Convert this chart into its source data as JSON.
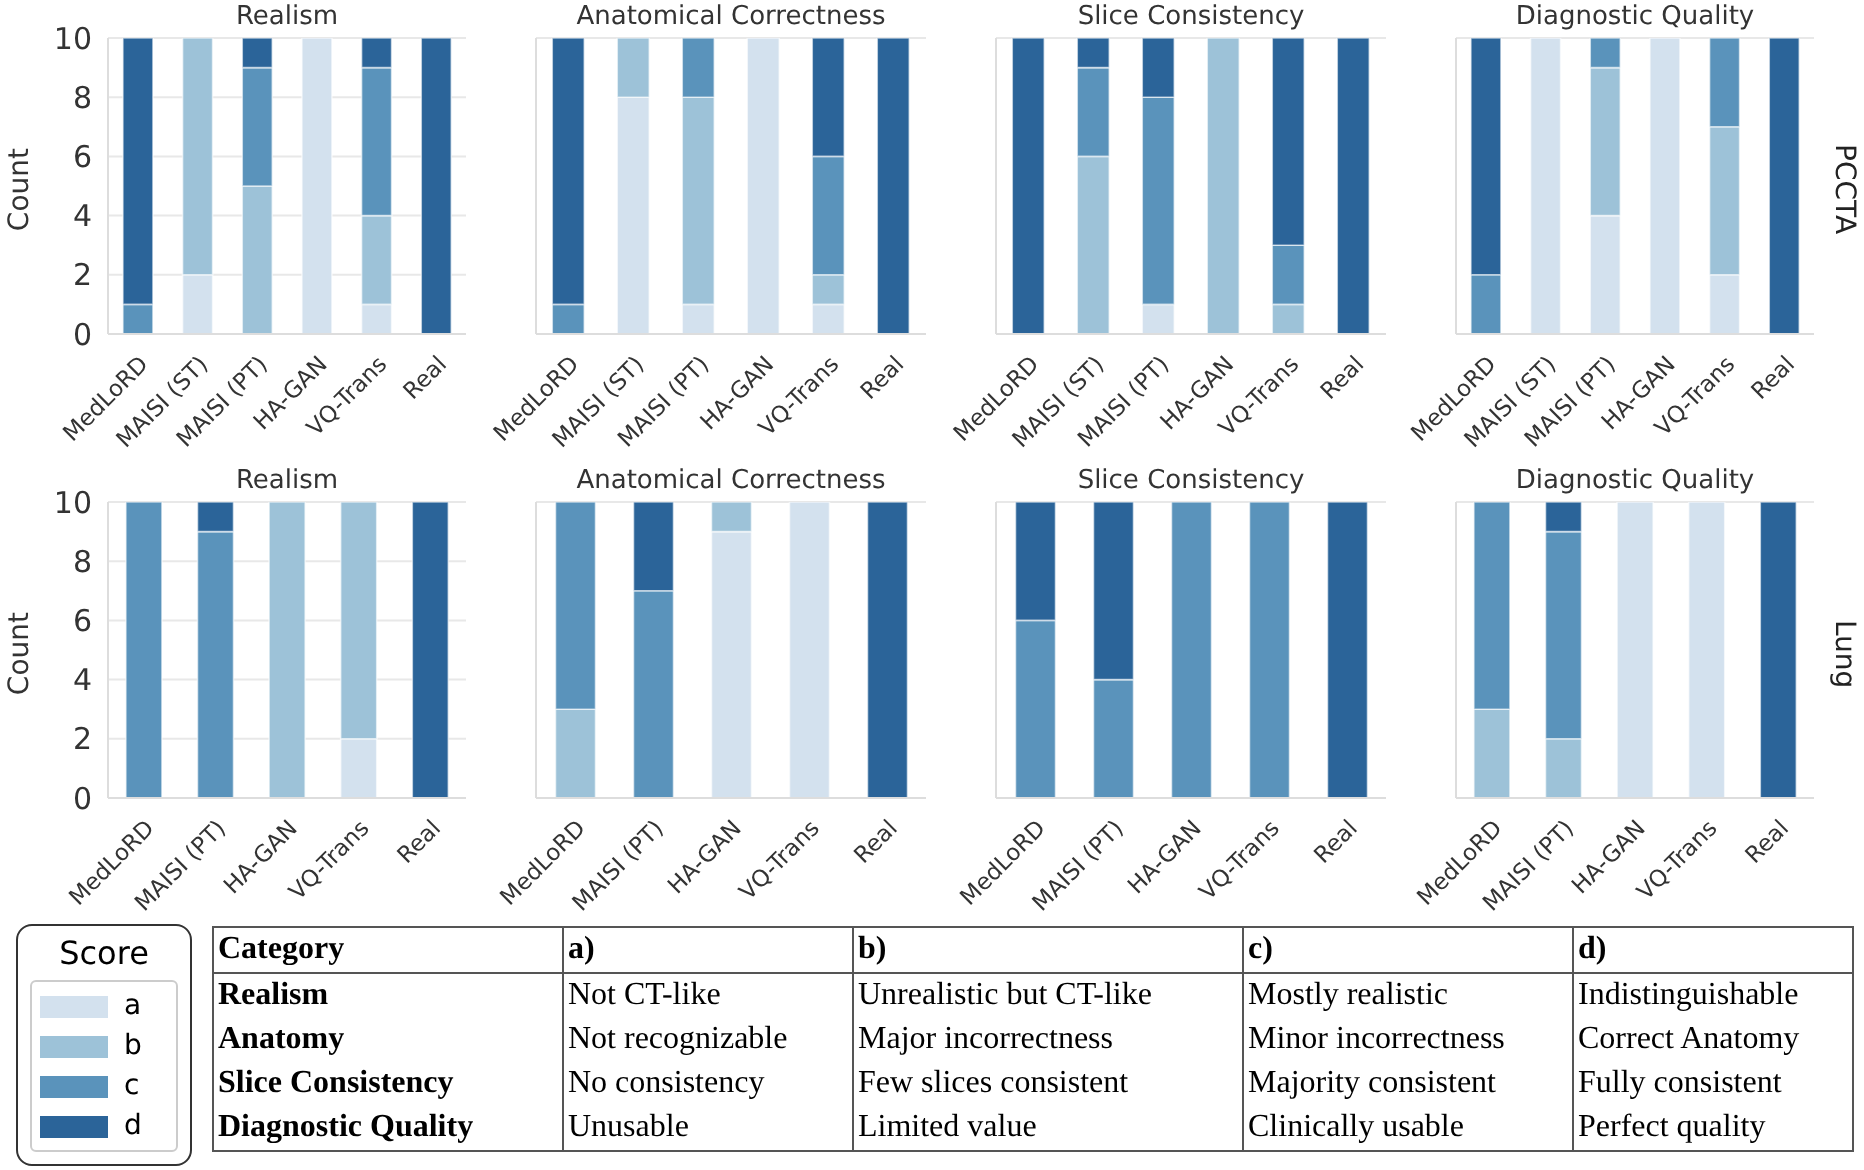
{
  "chart_data": [
    {
      "type": "bar",
      "stacked": true,
      "title": "Realism",
      "ylabel": "Count",
      "categories": [
        "MedLoRD",
        "MAISI (ST)",
        "MAISI (PT)",
        "HA-GAN",
        "VQ-Trans",
        "Real"
      ],
      "ylim": [
        0,
        10
      ],
      "yticks": [
        0,
        2,
        4,
        6,
        8,
        10
      ],
      "grid": "y",
      "legend": "bottom left",
      "legend_title": "Score",
      "series": [
        {
          "name": "a",
          "color": "#d3e1ee",
          "values": [
            0,
            2,
            0,
            10,
            1,
            0
          ]
        },
        {
          "name": "b",
          "color": "#9dc2d8",
          "values": [
            0,
            8,
            5,
            0,
            3,
            0
          ]
        },
        {
          "name": "c",
          "color": "#5a93bb",
          "values": [
            1,
            0,
            4,
            0,
            5,
            0
          ]
        },
        {
          "name": "d",
          "color": "#2b6499",
          "values": [
            9,
            0,
            1,
            0,
            1,
            10
          ]
        }
      ]
    },
    {
      "type": "bar",
      "stacked": true,
      "title": "Anatomical Correctness",
      "categories": [
        "MedLoRD",
        "MAISI (ST)",
        "MAISI (PT)",
        "HA-GAN",
        "VQ-Trans",
        "Real"
      ],
      "ylim": [
        0,
        10
      ],
      "yticks": [
        0,
        2,
        4,
        6,
        8,
        10
      ],
      "grid": "y",
      "tick_labels": "x",
      "series": [
        {
          "color": "#d3e1ee",
          "values": [
            0,
            8,
            1,
            10,
            1,
            0
          ]
        },
        {
          "color": "#9dc2d8",
          "values": [
            0,
            2,
            7,
            0,
            1,
            0
          ]
        },
        {
          "color": "#5a93bb",
          "values": [
            1,
            0,
            2,
            0,
            4,
            0
          ]
        },
        {
          "color": "#2b6499",
          "values": [
            9,
            0,
            0,
            0,
            4,
            10
          ]
        }
      ]
    },
    {
      "type": "bar",
      "stacked": true,
      "title": "Slice Consistency",
      "categories": [
        "MedLoRD",
        "MAISI (ST)",
        "MAISI (PT)",
        "HA-GAN",
        "VQ-Trans",
        "Real"
      ],
      "ylim": [
        0,
        10
      ],
      "yticks": [
        0,
        2,
        4,
        6,
        8,
        10
      ],
      "grid": "y",
      "tick_labels": "x",
      "series": [
        {
          "color": "#d3e1ee",
          "values": [
            0,
            0,
            1,
            0,
            0,
            0
          ]
        },
        {
          "color": "#9dc2d8",
          "values": [
            0,
            6,
            0,
            10,
            1,
            0
          ]
        },
        {
          "color": "#5a93bb",
          "values": [
            0,
            3,
            7,
            0,
            2,
            0
          ]
        },
        {
          "color": "#2b6499",
          "values": [
            10,
            1,
            2,
            0,
            7,
            10
          ]
        }
      ]
    },
    {
      "type": "bar",
      "stacked": true,
      "title": "Diagnostic Quality",
      "y2label": "PCCTA",
      "categories": [
        "MedLoRD",
        "MAISI (ST)",
        "MAISI (PT)",
        "HA-GAN",
        "VQ-Trans",
        "Real"
      ],
      "ylim": [
        0,
        10
      ],
      "yticks": [
        0,
        2,
        4,
        6,
        8,
        10
      ],
      "grid": "y",
      "tick_labels": "x",
      "series": [
        {
          "color": "#d3e1ee",
          "values": [
            0,
            10,
            4,
            10,
            2,
            0
          ]
        },
        {
          "color": "#9dc2d8",
          "values": [
            0,
            0,
            5,
            0,
            5,
            0
          ]
        },
        {
          "color": "#5a93bb",
          "values": [
            2,
            0,
            1,
            0,
            3,
            0
          ]
        },
        {
          "color": "#2b6499",
          "values": [
            8,
            0,
            0,
            0,
            0,
            10
          ]
        }
      ]
    },
    {
      "type": "bar",
      "stacked": true,
      "title": "Realism",
      "ylabel": "Count",
      "categories": [
        "MedLoRD",
        "MAISI (PT)",
        "HA-GAN",
        "VQ-Trans",
        "Real"
      ],
      "ylim": [
        0,
        10
      ],
      "yticks": [
        0,
        2,
        4,
        6,
        8,
        10
      ],
      "grid": "y",
      "series": [
        {
          "color": "#d3e1ee",
          "values": [
            0,
            0,
            0,
            2,
            0
          ]
        },
        {
          "color": "#9dc2d8",
          "values": [
            0,
            0,
            10,
            8,
            0
          ]
        },
        {
          "color": "#5a93bb",
          "values": [
            10,
            9,
            0,
            0,
            0
          ]
        },
        {
          "color": "#2b6499",
          "values": [
            0,
            1,
            0,
            0,
            10
          ]
        }
      ]
    },
    {
      "type": "bar",
      "stacked": true,
      "title": "Anatomical Correctness",
      "categories": [
        "MedLoRD",
        "MAISI (PT)",
        "HA-GAN",
        "VQ-Trans",
        "Real"
      ],
      "ylim": [
        0,
        10
      ],
      "yticks": [
        0,
        2,
        4,
        6,
        8,
        10
      ],
      "grid": "y",
      "tick_labels": "x",
      "series": [
        {
          "color": "#d3e1ee",
          "values": [
            0,
            0,
            9,
            10,
            0
          ]
        },
        {
          "color": "#9dc2d8",
          "values": [
            3,
            0,
            1,
            0,
            0
          ]
        },
        {
          "color": "#5a93bb",
          "values": [
            7,
            7,
            0,
            0,
            0
          ]
        },
        {
          "color": "#2b6499",
          "values": [
            0,
            3,
            0,
            0,
            10
          ]
        }
      ]
    },
    {
      "type": "bar",
      "stacked": true,
      "title": "Slice Consistency",
      "categories": [
        "MedLoRD",
        "MAISI (PT)",
        "HA-GAN",
        "VQ-Trans",
        "Real"
      ],
      "ylim": [
        0,
        10
      ],
      "yticks": [
        0,
        2,
        4,
        6,
        8,
        10
      ],
      "grid": "y",
      "tick_labels": "x",
      "series": [
        {
          "color": "#d3e1ee",
          "values": [
            0,
            0,
            0,
            0,
            0
          ]
        },
        {
          "color": "#9dc2d8",
          "values": [
            0,
            0,
            0,
            0,
            0
          ]
        },
        {
          "color": "#5a93bb",
          "values": [
            6,
            4,
            10,
            10,
            0
          ]
        },
        {
          "color": "#2b6499",
          "values": [
            4,
            6,
            0,
            0,
            10
          ]
        }
      ]
    },
    {
      "type": "bar",
      "stacked": true,
      "title": "Diagnostic Quality",
      "y2label": "Lung",
      "categories": [
        "MedLoRD",
        "MAISI (PT)",
        "HA-GAN",
        "VQ-Trans",
        "Real"
      ],
      "ylim": [
        0,
        10
      ],
      "yticks": [
        0,
        2,
        4,
        6,
        8,
        10
      ],
      "grid": "y",
      "tick_labels": "x",
      "series": [
        {
          "color": "#d3e1ee",
          "values": [
            0,
            0,
            10,
            10,
            0
          ]
        },
        {
          "color": "#9dc2d8",
          "values": [
            3,
            2,
            0,
            0,
            0
          ]
        },
        {
          "color": "#5a93bb",
          "values": [
            7,
            7,
            0,
            0,
            0
          ]
        },
        {
          "color": "#2b6499",
          "values": [
            0,
            1,
            0,
            0,
            10
          ]
        }
      ]
    },
    {
      "type": "other",
      "annotations": [
        "Category",
        "a)",
        "b)",
        "c)",
        "d)",
        "Realism",
        "Not CT-like",
        "Unrealistic but CT-like",
        "Mostly realistic",
        "Indistinguishable",
        "Anatomy",
        "Not recognizable",
        "Major incorrectness",
        "Minor incorrectness",
        "Correct Anatomy",
        "Slice Consistency",
        "No consistency",
        "Few slices consistent",
        "Majority consistent",
        "Fully consistent",
        "Diagnostic Quality",
        "Unusable",
        "Limited value",
        "Clinically usable",
        "Perfect quality"
      ]
    }
  ]
}
